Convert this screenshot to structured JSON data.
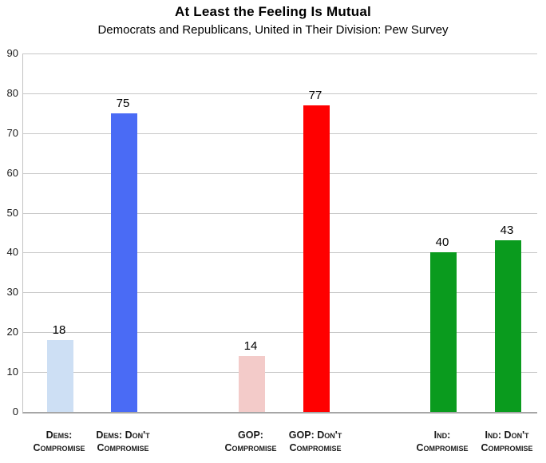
{
  "title": "At Least the Feeling Is Mutual",
  "subtitle": "Democrats and Republicans, United in Their Division: Pew Survey",
  "chart_data": {
    "type": "bar",
    "categories": [
      "Dems: Compromise",
      "Dems: Don't Compromise",
      "GOP: Compromise",
      "GOP: Don't Compromise",
      "Ind: Compromise",
      "Ind: Don't Compromise"
    ],
    "category_label_lines": [
      [
        "Dems:",
        "Compromise"
      ],
      [
        "Dems: Don't",
        "Compromise"
      ],
      [
        "GOP:",
        "Compromise"
      ],
      [
        "GOP: Don't",
        "Compromise"
      ],
      [
        "Ind:",
        "Compromise"
      ],
      [
        "Ind: Don't",
        "Compromise"
      ]
    ],
    "category_slugs": [
      "dems-compromise",
      "dems-dont-compromise",
      "gop-compromise",
      "gop-dont-compromise",
      "ind-compromise",
      "ind-dont-compromise"
    ],
    "values": [
      18,
      75,
      14,
      77,
      40,
      43
    ],
    "data_labels": [
      "18",
      "75",
      "14",
      "77",
      "40",
      "43"
    ],
    "bar_colors": [
      "#cddff4",
      "#4a6bf5",
      "#f3cbc9",
      "#ff0000",
      "#0a9b1e",
      "#0a9b1e"
    ],
    "title": "At Least the Feeling Is Mutual",
    "subtitle": "Democrats and Republicans, United in Their Division: Pew Survey",
    "xlabel": "",
    "ylabel": "",
    "ylim": [
      0,
      90
    ],
    "yticks": [
      0,
      10,
      20,
      30,
      40,
      50,
      60,
      70,
      80,
      90
    ],
    "grid": true,
    "legend": false,
    "grouping": "three groups of two with a gap between groups"
  },
  "colors": {
    "gridline": "#c8c8c8",
    "axis_line": "#a6a6a6",
    "text": "#1a1a1a",
    "background": "#ffffff"
  }
}
